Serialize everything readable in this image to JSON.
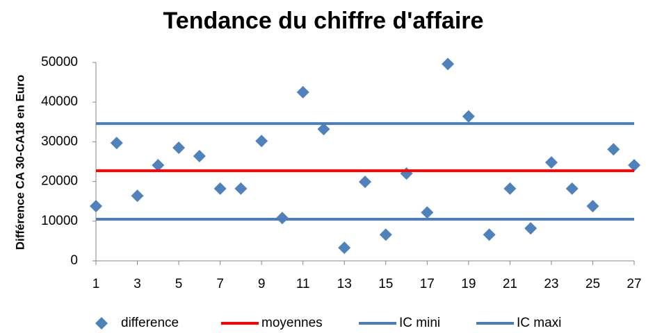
{
  "chart_data": {
    "type": "scatter",
    "title": "Tendance du chiffre d'affaire",
    "y_label": "Différence CA 30-CA18  en Euro",
    "xlim": [
      1,
      27
    ],
    "xticks": [
      1,
      3,
      5,
      7,
      9,
      11,
      13,
      15,
      17,
      19,
      21,
      23,
      25,
      27
    ],
    "ylim": [
      0,
      50000
    ],
    "yticks": [
      0,
      10000,
      20000,
      30000,
      40000,
      50000
    ],
    "grid": false,
    "legend": "bottom",
    "series": [
      {
        "name": "difference",
        "color": "#4f81bd",
        "marker": "diamond",
        "x": [
          1,
          2,
          3,
          4,
          5,
          6,
          7,
          8,
          9,
          10,
          11,
          12,
          13,
          14,
          15,
          16,
          17,
          18,
          19,
          20,
          21,
          22,
          23,
          24,
          25,
          26,
          27
        ],
        "values": [
          13800,
          29700,
          16400,
          24100,
          28500,
          26400,
          18200,
          18200,
          30200,
          10800,
          42500,
          33200,
          3300,
          19900,
          6600,
          22000,
          12200,
          49600,
          36400,
          6600,
          18200,
          8200,
          24800,
          18200,
          13800,
          28100,
          24100
        ]
      },
      {
        "name": "moyennes",
        "color": "#ff0000",
        "marker": "line",
        "x": [
          1,
          27
        ],
        "values": [
          22700,
          22700
        ]
      },
      {
        "name": "IC mini",
        "color": "#4a7ebb",
        "marker": "line",
        "x": [
          1,
          27
        ],
        "values": [
          10500,
          10500
        ]
      },
      {
        "name": "IC maxi",
        "color": "#4a7ebb",
        "marker": "line",
        "x": [
          1,
          27
        ],
        "values": [
          34600,
          34600
        ]
      }
    ]
  }
}
